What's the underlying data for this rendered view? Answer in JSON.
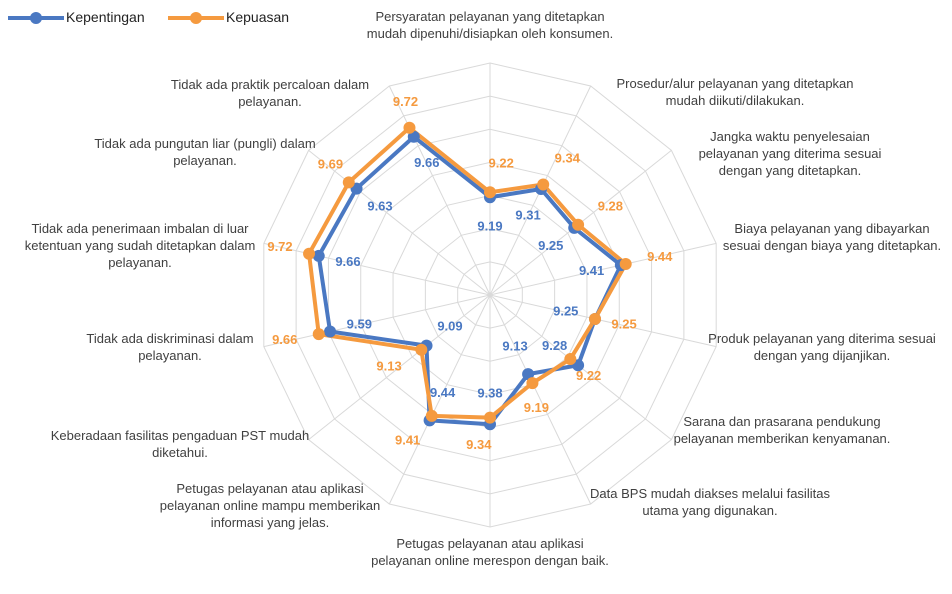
{
  "chart_data": {
    "type": "radar",
    "categories": [
      "Persyaratan pelayanan yang ditetapkan mudah dipenuhi/disiapkan oleh konsumen.",
      "Prosedur/alur pelayanan yang ditetapkan mudah diikuti/dilakukan.",
      "Jangka waktu penyelesaian pelayanan yang diterima sesuai dengan yang ditetapkan.",
      "Biaya pelayanan yang dibayarkan sesuai dengan biaya yang ditetapkan.",
      "Produk pelayanan yang diterima sesuai dengan yang dijanjikan.",
      "Sarana dan prasarana pendukung pelayanan memberikan kenyamanan.",
      "Data BPS mudah diakses melalui fasilitas utama yang digunakan.",
      "Petugas pelayanan atau aplikasi pelayanan online merespon dengan baik.",
      "Petugas pelayanan atau aplikasi pelayanan online mampu memberikan informasi yang jelas.",
      "Keberadaan fasilitas pengaduan PST mudah diketahui.",
      "Tidak ada diskriminasi dalam pelayanan.",
      "Tidak ada penerimaan imbalan di luar ketentuan yang sudah ditetapkan dalam pelayanan.",
      "Tidak ada pungutan liar (pungli) dalam pelayanan.",
      "Tidak ada praktik percaloan dalam pelayanan."
    ],
    "series": [
      {
        "name": "Kepentingan",
        "color": "#4a78c2",
        "values": [
          9.19,
          9.31,
          9.25,
          9.41,
          9.25,
          9.28,
          9.13,
          9.38,
          9.44,
          9.09,
          9.59,
          9.66,
          9.63,
          9.66
        ]
      },
      {
        "name": "Kepuasan",
        "color": "#f59a3f",
        "values": [
          9.22,
          9.34,
          9.28,
          9.44,
          9.25,
          9.22,
          9.19,
          9.34,
          9.41,
          9.13,
          9.66,
          9.72,
          9.69,
          9.72
        ]
      }
    ],
    "ylim": [
      8.6,
      10.0
    ],
    "yticks": [
      8.8,
      9.0,
      9.2,
      9.4,
      9.6,
      9.8,
      10.0
    ],
    "grid": true,
    "legend": "top-left"
  }
}
